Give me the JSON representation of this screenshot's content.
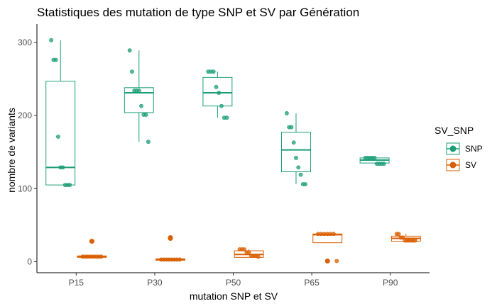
{
  "chart_data": {
    "type": "boxplot",
    "title": "Statistiques des mutation de type SNP et SV par Génération",
    "xlabel": "mutation SNP et SV",
    "ylabel": "nombre de variants",
    "categories": [
      "P15",
      "P30",
      "P50",
      "P65",
      "P90"
    ],
    "ylim": [
      -15,
      325
    ],
    "yticks": [
      0,
      100,
      200,
      300
    ],
    "grid": false,
    "legend": {
      "title": "SV_SNP",
      "position": "right"
    },
    "series": [
      {
        "name": "SNP",
        "color": "#1b9e77",
        "boxes": [
          {
            "q1": 105,
            "median": 129,
            "q3": 247,
            "whisker_low": 105,
            "whisker_high": 303,
            "outliers": []
          },
          {
            "q1": 204,
            "median": 231,
            "q3": 238,
            "whisker_low": 164,
            "whisker_high": 289,
            "outliers": []
          },
          {
            "q1": 213,
            "median": 231,
            "q3": 252,
            "whisker_low": 197,
            "whisker_high": 260,
            "outliers": []
          },
          {
            "q1": 123,
            "median": 153,
            "q3": 177,
            "whisker_low": 106,
            "whisker_high": 203,
            "outliers": []
          },
          {
            "q1": 135,
            "median": 139,
            "q3": 142,
            "whisker_low": 134,
            "whisker_high": 142,
            "outliers": []
          }
        ],
        "points": [
          [
            303,
            276,
            276,
            171,
            129,
            129,
            105,
            105,
            105
          ],
          [
            289,
            260,
            234,
            234,
            234,
            213,
            201,
            201,
            164
          ],
          [
            260,
            260,
            260,
            239,
            231,
            213,
            197,
            197
          ],
          [
            203,
            184,
            184,
            163,
            142,
            129,
            119,
            106,
            106
          ],
          [
            142,
            142,
            142,
            142,
            142,
            134,
            134,
            134,
            134
          ]
        ]
      },
      {
        "name": "SV",
        "color": "#d95f02",
        "boxes": [
          {
            "q1": 6,
            "median": 7,
            "q3": 8,
            "whisker_low": 6,
            "whisker_high": 8,
            "outliers": [
              28
            ]
          },
          {
            "q1": 2,
            "median": 3,
            "q3": 4,
            "whisker_low": 2,
            "whisker_high": 4,
            "outliers": [
              32,
              33
            ]
          },
          {
            "q1": 6,
            "median": 10,
            "q3": 15,
            "whisker_low": 6,
            "whisker_high": 17,
            "outliers": []
          },
          {
            "q1": 26,
            "median": 37,
            "q3": 38,
            "whisker_low": 26,
            "whisker_high": 38,
            "outliers": [
              1
            ]
          },
          {
            "q1": 28,
            "median": 32,
            "q3": 35,
            "whisker_low": 28,
            "whisker_high": 38,
            "outliers": []
          }
        ],
        "points": [
          [
            7,
            7,
            7,
            7,
            7,
            7,
            7,
            7,
            7
          ],
          [
            3,
            3,
            3,
            3,
            3,
            3,
            3,
            3
          ],
          [
            17,
            17,
            17,
            13,
            13,
            8,
            8,
            8,
            7
          ],
          [
            38,
            38,
            38,
            38,
            38,
            38,
            1
          ],
          [
            38,
            38,
            33,
            33,
            29,
            29,
            29,
            29,
            29,
            29
          ]
        ]
      }
    ]
  }
}
